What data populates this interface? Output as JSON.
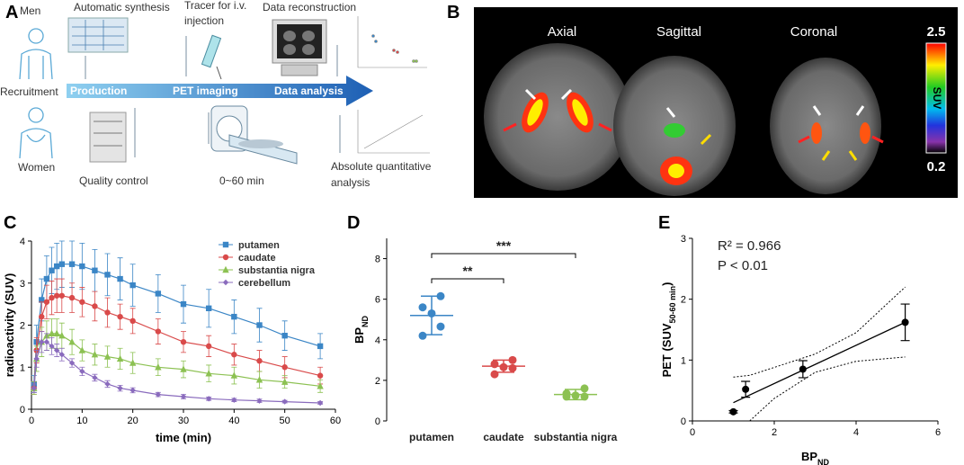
{
  "panels": {
    "a": "A",
    "b": "B",
    "c": "C",
    "d": "D",
    "e": "E"
  },
  "workflow": {
    "men": "Men",
    "recruitment": "Recruitment",
    "women": "Women",
    "synthesis": "Automatic synthesis",
    "production": "Production",
    "quality": "Quality control",
    "tracer": [
      "Tracer for i.v.",
      "injection"
    ],
    "imaging": "PET imaging",
    "duration": "0~60 min",
    "reconstruction": "Data reconstruction",
    "analysis": "Data analysis",
    "quantitative": [
      "Absolute quantitative",
      "analysis"
    ]
  },
  "imaging": {
    "views": [
      "Axial",
      "Sagittal",
      "Coronal"
    ],
    "colorbar": {
      "max": "2.5",
      "label": "SUV",
      "min": "0.2"
    }
  },
  "chart_data": [
    {
      "type": "line",
      "xlabel": "time (min)",
      "ylabel": "radioactivity (SUV)",
      "x": [
        0.5,
        1,
        2,
        3,
        4,
        5,
        6,
        8,
        10,
        12.5,
        15,
        17.5,
        20,
        25,
        30,
        35,
        40,
        45,
        50,
        57
      ],
      "xlim": [
        0,
        60
      ],
      "xticks": [
        0,
        10,
        20,
        30,
        40,
        50,
        60
      ],
      "ylim": [
        0,
        4
      ],
      "yticks": [
        0,
        1,
        2,
        3,
        4
      ],
      "legend": "top-right",
      "series": [
        {
          "name": "putamen",
          "color": "#3b86c6",
          "marker": "square",
          "values": [
            0.6,
            1.6,
            2.6,
            3.1,
            3.3,
            3.4,
            3.45,
            3.45,
            3.4,
            3.3,
            3.2,
            3.1,
            2.95,
            2.75,
            2.5,
            2.4,
            2.2,
            2.0,
            1.75,
            1.5
          ],
          "errors": [
            0.2,
            0.4,
            0.5,
            0.55,
            0.55,
            0.55,
            0.55,
            0.55,
            0.55,
            0.5,
            0.5,
            0.5,
            0.5,
            0.45,
            0.45,
            0.45,
            0.4,
            0.4,
            0.35,
            0.3
          ]
        },
        {
          "name": "caudate",
          "color": "#d94a4a",
          "marker": "circle",
          "values": [
            0.5,
            1.4,
            2.2,
            2.55,
            2.65,
            2.7,
            2.7,
            2.65,
            2.55,
            2.45,
            2.3,
            2.2,
            2.1,
            1.85,
            1.6,
            1.5,
            1.3,
            1.15,
            1.0,
            0.8
          ],
          "errors": [
            0.15,
            0.3,
            0.35,
            0.4,
            0.4,
            0.4,
            0.4,
            0.35,
            0.35,
            0.35,
            0.35,
            0.3,
            0.3,
            0.3,
            0.25,
            0.25,
            0.25,
            0.25,
            0.25,
            0.2
          ]
        },
        {
          "name": "substantia nigra",
          "color": "#8cc152",
          "marker": "triangle",
          "values": [
            0.5,
            1.2,
            1.6,
            1.75,
            1.8,
            1.8,
            1.75,
            1.6,
            1.4,
            1.3,
            1.25,
            1.2,
            1.1,
            1.0,
            0.95,
            0.85,
            0.8,
            0.7,
            0.65,
            0.55
          ],
          "errors": [
            0.15,
            0.3,
            0.35,
            0.35,
            0.35,
            0.35,
            0.3,
            0.3,
            0.25,
            0.25,
            0.25,
            0.25,
            0.25,
            0.2,
            0.2,
            0.2,
            0.2,
            0.2,
            0.15,
            0.15
          ]
        },
        {
          "name": "cerebellum",
          "color": "#8a6bbd",
          "marker": "diamond",
          "values": [
            0.5,
            1.2,
            1.6,
            1.6,
            1.5,
            1.4,
            1.3,
            1.1,
            0.9,
            0.75,
            0.6,
            0.5,
            0.45,
            0.35,
            0.3,
            0.25,
            0.22,
            0.2,
            0.18,
            0.15
          ],
          "errors": [
            0.1,
            0.2,
            0.25,
            0.2,
            0.2,
            0.15,
            0.15,
            0.1,
            0.1,
            0.08,
            0.08,
            0.07,
            0.06,
            0.05,
            0.05,
            0.04,
            0.04,
            0.04,
            0.03,
            0.03
          ]
        }
      ]
    },
    {
      "type": "strip",
      "ylabel": "BP",
      "ylabel_sub": "ND",
      "categories": [
        "putamen",
        "caudate",
        "substantia nigra"
      ],
      "colors": [
        "#3b86c6",
        "#d94a4a",
        "#8cc152"
      ],
      "points": [
        [
          6.15,
          5.6,
          5.3,
          4.65,
          4.2
        ],
        [
          3.0,
          2.8,
          2.65,
          2.6,
          2.3
        ],
        [
          1.6,
          1.35,
          1.25,
          1.2,
          1.2
        ]
      ],
      "means": [
        5.2,
        2.7,
        1.3
      ],
      "sds": [
        0.95,
        0.3,
        0.25
      ],
      "ylim": [
        0,
        9
      ],
      "yticks": [
        0,
        2,
        4,
        6,
        8
      ],
      "annotations": [
        "**",
        "***"
      ]
    },
    {
      "type": "scatter",
      "annotations": [
        "R² = 0.966",
        "P < 0.01"
      ],
      "xlabel": "BP",
      "xlabel_sub": "ND",
      "ylabel": "PET (SUV",
      "ylabel_sub": "50-60 min",
      "ylabel_end": ")",
      "x": [
        1.0,
        1.3,
        2.7,
        5.2
      ],
      "y": [
        0.15,
        0.52,
        0.85,
        1.62
      ],
      "errors": [
        0.02,
        0.13,
        0.14,
        0.3
      ],
      "color": "#000000",
      "fit": {
        "x": [
          1,
          5.2
        ],
        "y": [
          0.3,
          1.62
        ]
      },
      "band": {
        "x": [
          1,
          1.4,
          2,
          3,
          4,
          5.2
        ],
        "upper": [
          0.72,
          0.75,
          0.88,
          1.1,
          1.45,
          2.2
        ],
        "lower": [
          null,
          0,
          0.37,
          0.8,
          0.98,
          1.05
        ]
      },
      "xlim": [
        0,
        6
      ],
      "xticks": [
        0,
        2,
        4,
        6
      ],
      "ylim": [
        0,
        3
      ],
      "yticks": [
        0,
        1,
        2,
        3
      ]
    }
  ]
}
